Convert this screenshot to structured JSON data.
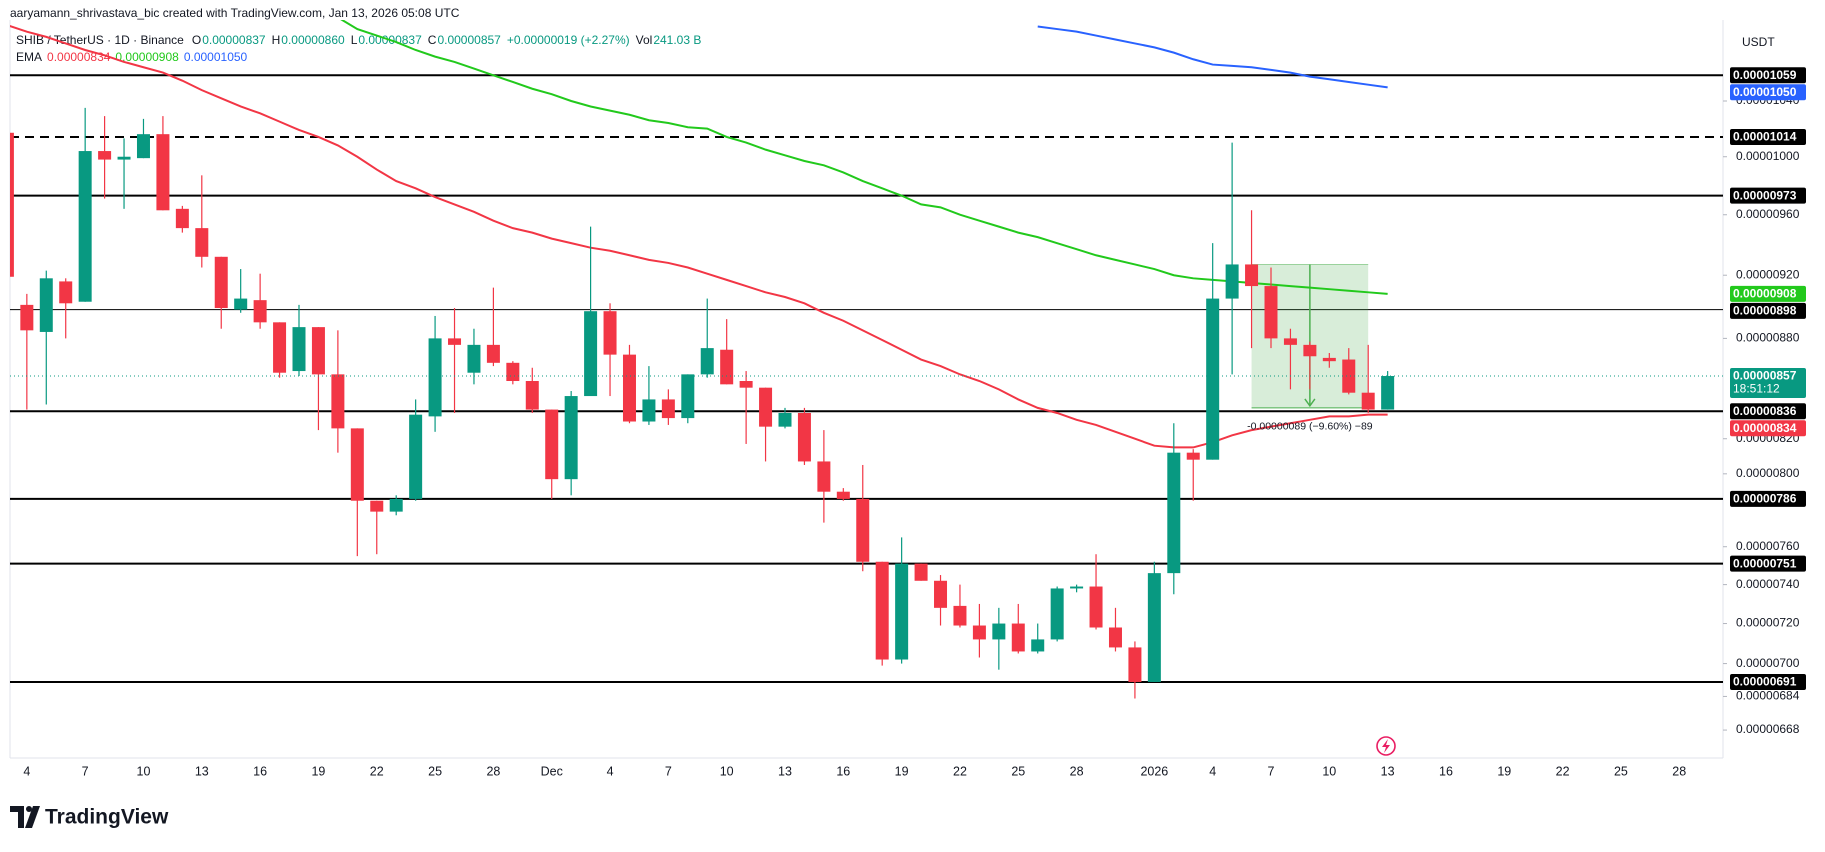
{
  "watermark": "aaryamann_shrivastava_bic created with TradingView.com, Jan 13, 2026 05:08 UTC",
  "brand": "TradingView",
  "chart_data": {
    "type": "candlestick",
    "symbol": "SHIB / TetherUS · 1D · Binance",
    "ohlc_legend": [
      {
        "label": "O",
        "text": "0.00000837"
      },
      {
        "label": "H",
        "text": "0.00000860"
      },
      {
        "label": "L",
        "text": "0.00000837"
      },
      {
        "label": "C",
        "text": "0.00000857"
      }
    ],
    "change": "+0.00000019 (+2.27%)",
    "volume": {
      "label": "Vol",
      "text": "241.03 B"
    },
    "currency": "USDT",
    "up_color": "#089981",
    "down_color": "#f23645",
    "categories": [
      null,
      "4",
      null,
      null,
      "7",
      null,
      null,
      "10",
      null,
      null,
      "13",
      null,
      null,
      "16",
      null,
      null,
      "19",
      null,
      null,
      "22",
      null,
      null,
      "25",
      null,
      null,
      "28",
      null,
      null,
      "Dec",
      null,
      null,
      "4",
      null,
      null,
      "7",
      null,
      null,
      "10",
      null,
      null,
      "13",
      null,
      null,
      "16",
      null,
      null,
      "19",
      null,
      null,
      "22",
      null,
      null,
      "25",
      null,
      null,
      "28",
      null,
      null,
      null,
      "2026",
      null,
      null,
      "4",
      null,
      null,
      "7",
      null,
      null,
      "10",
      null,
      null,
      "13",
      null,
      null,
      "16",
      null,
      null,
      "19",
      null,
      null,
      "22",
      null,
      null,
      "25",
      null,
      null,
      "28",
      null,
      null
    ],
    "open": [
      1.017e-05,
      9.01e-06,
      8.84e-06,
      9.16e-06,
      9.03e-06,
      1.004e-05,
      9.98e-06,
      9.99e-06,
      1.016e-05,
      9.64e-06,
      9.51e-06,
      9.32e-06,
      8.98e-06,
      9.04e-06,
      8.9e-06,
      8.6e-06,
      8.87e-06,
      8.58e-06,
      8.26e-06,
      7.85e-06,
      7.79e-06,
      7.86e-06,
      8.33e-06,
      8.8e-06,
      8.59e-06,
      8.76e-06,
      8.65e-06,
      8.54e-06,
      8.37e-06,
      7.97e-06,
      8.45e-06,
      8.97e-06,
      8.7e-06,
      8.3e-06,
      8.43e-06,
      8.32e-06,
      8.58e-06,
      8.73e-06,
      8.54e-06,
      8.5e-06,
      8.27e-06,
      8.35e-06,
      8.07e-06,
      7.9e-06,
      7.86e-06,
      7.52e-06,
      7.02e-06,
      7.51e-06,
      7.42e-06,
      7.29e-06,
      7.19e-06,
      7.12e-06,
      7.2e-06,
      7.06e-06,
      7.12e-06,
      7.38e-06,
      7.39e-06,
      7.18e-06,
      7.08e-06,
      6.91e-06,
      7.46e-06,
      8.12e-06,
      8.08e-06,
      9.05e-06,
      9.27e-06,
      9.13e-06,
      8.8e-06,
      8.76e-06,
      8.68e-06,
      8.67e-06,
      8.47e-06,
      8.37e-06,
      null,
      null,
      null,
      null,
      null,
      null,
      null,
      null,
      null,
      null,
      null,
      null,
      null,
      null,
      null,
      null,
      null
    ],
    "high": [
      1.018e-05,
      9.08e-06,
      9.23e-06,
      9.18e-06,
      1.035e-05,
      1.029e-05,
      1.013e-05,
      1.027e-05,
      1.029e-05,
      9.66e-06,
      9.87e-06,
      9.32e-06,
      9.24e-06,
      9.21e-06,
      8.9e-06,
      9.01e-06,
      8.87e-06,
      8.85e-06,
      8.26e-06,
      7.85e-06,
      7.88e-06,
      8.43e-06,
      8.94e-06,
      8.99e-06,
      8.86e-06,
      9.12e-06,
      8.66e-06,
      8.62e-06,
      8.37e-06,
      8.48e-06,
      9.52e-06,
      9.02e-06,
      8.76e-06,
      8.63e-06,
      8.49e-06,
      8.58e-06,
      9.05e-06,
      8.92e-06,
      8.6e-06,
      8.5e-06,
      8.38e-06,
      8.38e-06,
      8.25e-06,
      7.92e-06,
      8.05e-06,
      7.52e-06,
      7.65e-06,
      7.51e-06,
      7.45e-06,
      7.4e-06,
      7.3e-06,
      7.28e-06,
      7.3e-06,
      7.2e-06,
      7.39e-06,
      7.4e-06,
      7.56e-06,
      7.28e-06,
      7.11e-06,
      7.52e-06,
      8.29e-06,
      8.14e-06,
      9.41e-06,
      1.01e-05,
      9.63e-06,
      9.25e-06,
      8.86e-06,
      8.78e-06,
      8.71e-06,
      8.74e-06,
      8.76e-06,
      8.6e-06,
      null,
      null,
      null,
      null,
      null,
      null,
      null,
      null,
      null,
      null,
      null,
      null,
      null,
      null,
      null,
      null,
      null
    ],
    "low": [
      9.18e-06,
      8.37e-06,
      8.4e-06,
      8.8e-06,
      9.03e-06,
      9.71e-06,
      9.64e-06,
      9.99e-06,
      9.63e-06,
      9.48e-06,
      9.25e-06,
      8.86e-06,
      8.96e-06,
      8.86e-06,
      8.56e-06,
      8.57e-06,
      8.25e-06,
      8.12e-06,
      7.55e-06,
      7.56e-06,
      7.77e-06,
      7.85e-06,
      8.24e-06,
      8.35e-06,
      8.52e-06,
      8.63e-06,
      8.52e-06,
      8.35e-06,
      7.86e-06,
      7.88e-06,
      8.45e-06,
      8.45e-06,
      8.29e-06,
      8.28e-06,
      8.28e-06,
      8.29e-06,
      8.56e-06,
      8.52e-06,
      8.17e-06,
      8.07e-06,
      8.26e-06,
      8.05e-06,
      7.73e-06,
      7.85e-06,
      7.47e-06,
      6.99e-06,
      7e-06,
      7.42e-06,
      7.19e-06,
      7.18e-06,
      7.03e-06,
      6.97e-06,
      7.05e-06,
      7.05e-06,
      7.11e-06,
      7.36e-06,
      7.17e-06,
      7.06e-06,
      6.83e-06,
      6.91e-06,
      7.35e-06,
      7.85e-06,
      8.08e-06,
      8.58e-06,
      8.74e-06,
      8.74e-06,
      8.49e-06,
      8.49e-06,
      8.62e-06,
      8.46e-06,
      8.35e-06,
      8.37e-06,
      null,
      null,
      null,
      null,
      null,
      null,
      null,
      null,
      null,
      null,
      null,
      null,
      null,
      null,
      null,
      null,
      null
    ],
    "close": [
      9.19e-06,
      8.85e-06,
      9.18e-06,
      9.02e-06,
      1.004e-05,
      9.98e-06,
      1e-05,
      1.016e-05,
      9.63e-06,
      9.51e-06,
      9.32e-06,
      8.99e-06,
      9.05e-06,
      8.9e-06,
      8.59e-06,
      8.87e-06,
      8.58e-06,
      8.26e-06,
      7.85e-06,
      7.79e-06,
      7.86e-06,
      8.34e-06,
      8.8e-06,
      8.76e-06,
      8.76e-06,
      8.65e-06,
      8.54e-06,
      8.37e-06,
      7.97e-06,
      8.45e-06,
      8.97e-06,
      8.7e-06,
      8.3e-06,
      8.43e-06,
      8.32e-06,
      8.58e-06,
      8.74e-06,
      8.52e-06,
      8.5e-06,
      8.27e-06,
      8.35e-06,
      8.07e-06,
      7.9e-06,
      7.86e-06,
      7.52e-06,
      7.02e-06,
      7.51e-06,
      7.42e-06,
      7.28e-06,
      7.19e-06,
      7.12e-06,
      7.2e-06,
      7.06e-06,
      7.12e-06,
      7.38e-06,
      7.39e-06,
      7.18e-06,
      7.08e-06,
      6.91e-06,
      7.46e-06,
      8.12e-06,
      8.08e-06,
      9.05e-06,
      9.27e-06,
      9.13e-06,
      8.8e-06,
      8.76e-06,
      8.69e-06,
      8.66e-06,
      8.47e-06,
      8.37e-06,
      8.57e-06,
      null,
      null,
      null,
      null,
      null,
      null,
      null,
      null,
      null,
      null,
      null,
      null,
      null,
      null,
      null,
      null,
      null
    ],
    "ema": {
      "label": "EMA",
      "series": [
        {
          "color": "#f23645",
          "last": "0.00000834",
          "values": [
            1.097e-05,
            1.092e-05,
            1.088e-05,
            1.083e-05,
            1.078e-05,
            1.074e-05,
            1.069e-05,
            1.065e-05,
            1.061e-05,
            1.055e-05,
            1.048e-05,
            1.042e-05,
            1.036e-05,
            1.031e-05,
            1.025e-05,
            1.019e-05,
            1.014e-05,
            1.008e-05,
            1e-05,
            9.91e-06,
            9.83e-06,
            9.78e-06,
            9.72e-06,
            9.67e-06,
            9.62e-06,
            9.56e-06,
            9.51e-06,
            9.48e-06,
            9.44e-06,
            9.41e-06,
            9.38e-06,
            9.36e-06,
            9.33e-06,
            9.3e-06,
            9.28e-06,
            9.25e-06,
            9.21e-06,
            9.17e-06,
            9.13e-06,
            9.09e-06,
            9.06e-06,
            9.02e-06,
            8.96e-06,
            8.91e-06,
            8.85e-06,
            8.79e-06,
            8.73e-06,
            8.67e-06,
            8.63e-06,
            8.58e-06,
            8.54e-06,
            8.49e-06,
            8.43e-06,
            8.38e-06,
            8.35e-06,
            8.31e-06,
            8.28e-06,
            8.24e-06,
            8.2e-06,
            8.16e-06,
            8.15e-06,
            8.15e-06,
            8.18e-06,
            8.22e-06,
            8.25e-06,
            8.27e-06,
            8.29e-06,
            8.31e-06,
            8.33e-06,
            8.33e-06,
            8.34e-06,
            8.34e-06,
            null,
            null,
            null,
            null,
            null,
            null,
            null,
            null,
            null,
            null,
            null,
            null,
            null,
            null,
            null,
            null,
            null
          ]
        },
        {
          "color": "#22c91c",
          "last": "0.00000908",
          "values": [
            null,
            null,
            null,
            null,
            null,
            null,
            null,
            null,
            null,
            null,
            null,
            null,
            null,
            null,
            null,
            null,
            null,
            1.103e-05,
            1.094e-05,
            1.089e-05,
            1.084e-05,
            1.078e-05,
            1.073e-05,
            1.069e-05,
            1.064e-05,
            1.059e-05,
            1.054e-05,
            1.049e-05,
            1.045e-05,
            1.04e-05,
            1.036e-05,
            1.033e-05,
            1.03e-05,
            1.026e-05,
            1.024e-05,
            1.021e-05,
            1.02e-05,
            1.014e-05,
            1.01e-05,
            1.005e-05,
            1.001e-05,
            9.97e-06,
            9.94e-06,
            9.89e-06,
            9.83e-06,
            9.78e-06,
            9.73e-06,
            9.67e-06,
            9.65e-06,
            9.6e-06,
            9.56e-06,
            9.52e-06,
            9.48e-06,
            9.45e-06,
            9.41e-06,
            9.37e-06,
            9.33e-06,
            9.3e-06,
            9.27e-06,
            9.24e-06,
            9.2e-06,
            9.18e-06,
            9.17e-06,
            9.16e-06,
            9.15e-06,
            9.14e-06,
            9.13e-06,
            9.12e-06,
            9.11e-06,
            9.1e-06,
            9.09e-06,
            9.08e-06,
            null,
            null,
            null,
            null,
            null,
            null,
            null,
            null,
            null,
            null,
            null,
            null,
            null,
            null,
            null,
            null,
            null
          ]
        },
        {
          "color": "#2962ff",
          "last": "0.00001050",
          "values": [
            null,
            null,
            null,
            null,
            null,
            null,
            null,
            null,
            null,
            null,
            null,
            null,
            null,
            null,
            null,
            null,
            null,
            null,
            null,
            null,
            null,
            null,
            null,
            null,
            null,
            null,
            null,
            null,
            null,
            null,
            null,
            null,
            null,
            null,
            null,
            null,
            null,
            null,
            null,
            null,
            null,
            null,
            null,
            null,
            null,
            null,
            null,
            null,
            null,
            null,
            null,
            null,
            null,
            1.096e-05,
            1.094e-05,
            1.092e-05,
            1.089e-05,
            1.086e-05,
            1.083e-05,
            1.08e-05,
            1.076e-05,
            1.071e-05,
            1.067e-05,
            1.066e-05,
            1.065e-05,
            1.063e-05,
            1.061e-05,
            1.058e-05,
            1.056e-05,
            1.054e-05,
            1.052e-05,
            1.05e-05,
            null,
            null,
            null,
            null,
            null,
            null,
            null,
            null,
            null,
            null,
            null,
            null,
            null,
            null,
            null,
            null,
            null
          ]
        }
      ]
    },
    "log_scale": true,
    "ylim": [
      6.55e-06,
      1.101e-05
    ],
    "yticks": [
      {
        "value": 1.04e-05,
        "label": "0.00001040"
      },
      {
        "value": 1e-05,
        "label": "0.00001000"
      },
      {
        "value": 9.6e-06,
        "label": "0.00000960"
      },
      {
        "value": 9.2e-06,
        "label": "0.00000920"
      },
      {
        "value": 8.8e-06,
        "label": "0.00000880"
      },
      {
        "value": 8.2e-06,
        "label": "0.00000820"
      },
      {
        "value": 8e-06,
        "label": "0.00000800"
      },
      {
        "value": 7.6e-06,
        "label": "0.00000760"
      },
      {
        "value": 7.4e-06,
        "label": "0.00000740"
      },
      {
        "value": 7.2e-06,
        "label": "0.00000720"
      },
      {
        "value": 7e-06,
        "label": "0.00000700"
      },
      {
        "value": 6.84e-06,
        "label": "0.00000684"
      },
      {
        "value": 6.68e-06,
        "label": "0.00000668"
      }
    ],
    "levels": [
      {
        "value": 1.059e-05,
        "label": "0.00001059",
        "style": "solid"
      },
      {
        "value": 1.014e-05,
        "label": "0.00001014",
        "style": "dashed"
      },
      {
        "value": 9.73e-06,
        "label": "0.00000973",
        "style": "solid"
      },
      {
        "value": 8.98e-06,
        "label": "0.00000898",
        "style": "thin"
      },
      {
        "value": 8.36e-06,
        "label": "0.00000836",
        "style": "solid"
      },
      {
        "value": 7.86e-06,
        "label": "0.00000786",
        "style": "solid"
      },
      {
        "value": 7.51e-06,
        "label": "0.00000751",
        "style": "solid"
      },
      {
        "value": 6.91e-06,
        "label": "0.00000691",
        "style": "solid"
      }
    ],
    "level_color": "#000000",
    "last_price": {
      "value": 8.57e-06,
      "label": "0.00000857",
      "countdown": "18:51:12",
      "color": "#089981"
    },
    "measure": {
      "from": 9.27e-06,
      "to": 8.38e-06,
      "label": "-0.00000089 (−9.60%) −89",
      "color": "#4caf50"
    }
  }
}
